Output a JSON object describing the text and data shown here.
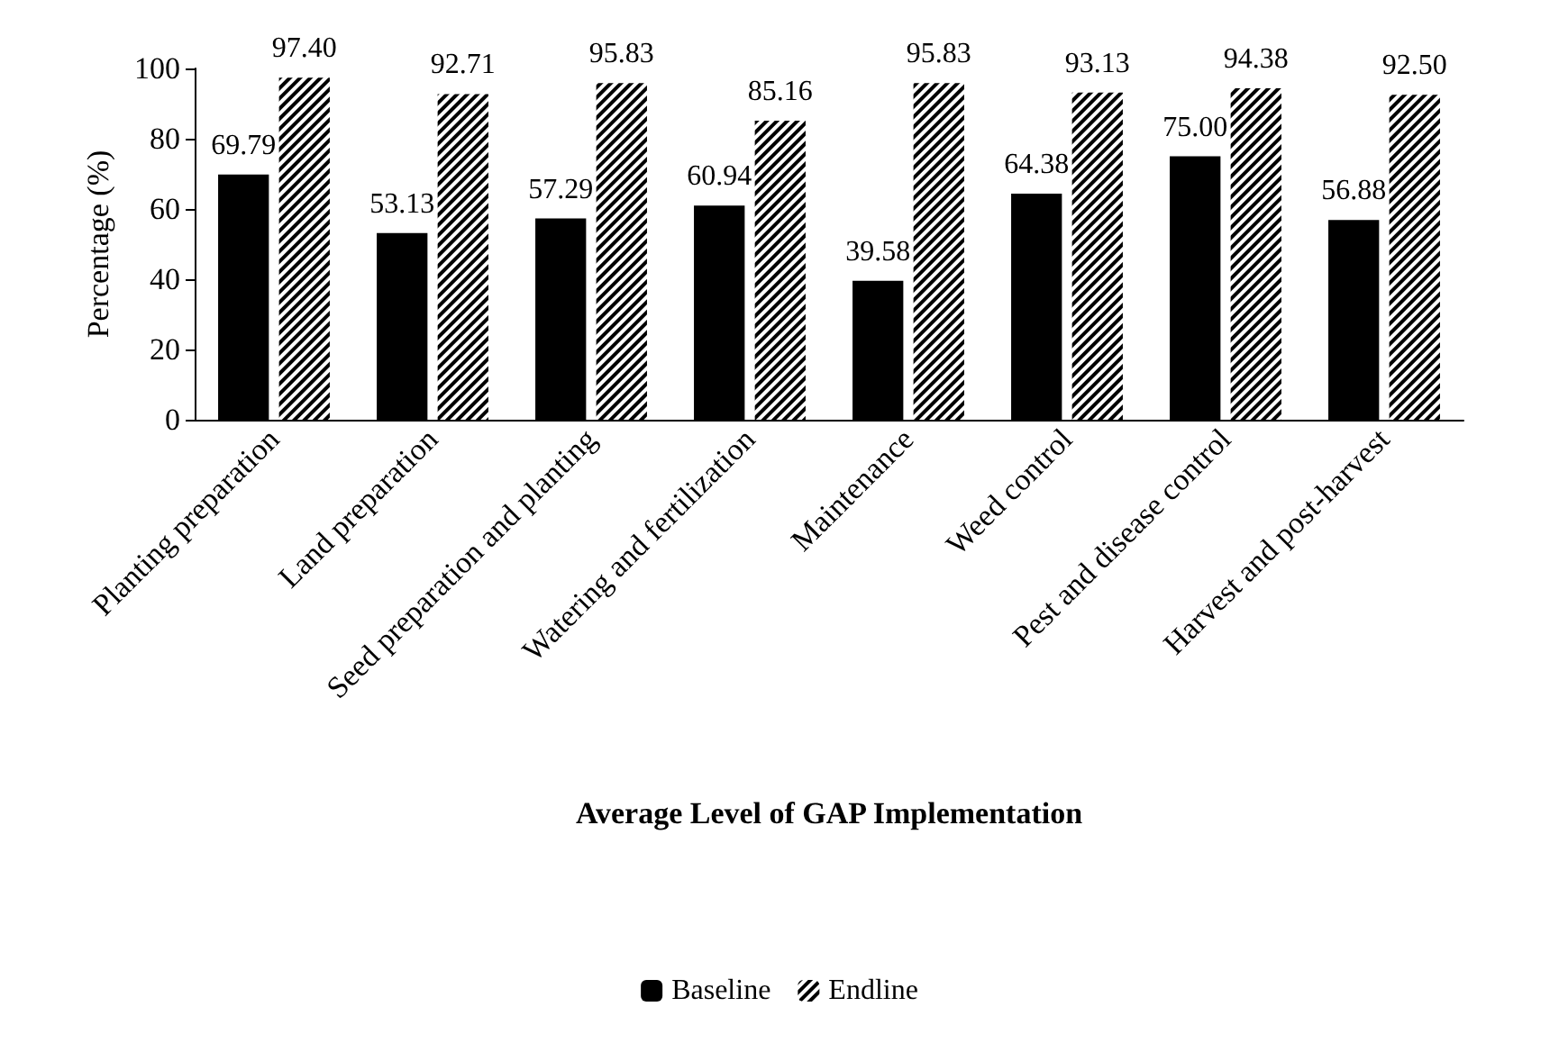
{
  "chart_data": {
    "type": "bar",
    "categories": [
      "Planting preparation",
      "Land preparation",
      "Seed preparation and planting",
      "Watering and fertilization",
      "Maintenance",
      "Weed control",
      "Pest and disease control",
      "Harvest and post-harvest"
    ],
    "series": [
      {
        "name": "Baseline",
        "color": "#000000",
        "values": [
          69.79,
          53.13,
          57.29,
          60.94,
          39.58,
          64.38,
          75.0,
          56.88
        ],
        "value_labels": [
          "69.79",
          "53.13",
          "57.29",
          "60.94",
          "39.58",
          "64.38",
          "75.00",
          "56.88"
        ]
      },
      {
        "name": "Endline",
        "color": "#ffffff",
        "values": [
          97.4,
          92.71,
          95.83,
          85.16,
          95.83,
          93.13,
          94.38,
          92.5
        ],
        "value_labels": [
          "97.40",
          "92.71",
          "95.83",
          "85.16",
          "95.83",
          "93.13",
          "94.38",
          "92.50"
        ]
      }
    ],
    "xlabel": "Average Level of GAP Implementation",
    "ylabel": "Percentage (%)",
    "ylim": [
      0,
      100
    ],
    "yticks": [
      0,
      20,
      40,
      60,
      80,
      100
    ],
    "grid": false,
    "legend": "bottom"
  }
}
